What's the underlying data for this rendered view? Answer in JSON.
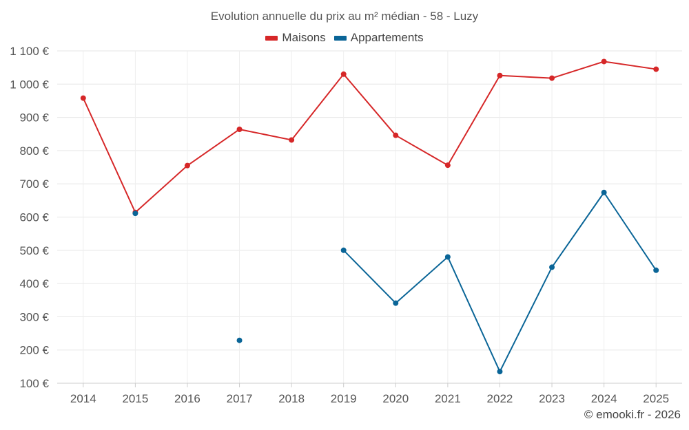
{
  "chart_data": {
    "type": "line",
    "title": "Evolution annuelle du prix au m² médian - 58 - Luzy",
    "categories": [
      "2014",
      "2015",
      "2016",
      "2017",
      "2018",
      "2019",
      "2020",
      "2021",
      "2022",
      "2023",
      "2024",
      "2025"
    ],
    "ylim": [
      100,
      1100
    ],
    "yticks": [
      100,
      200,
      300,
      400,
      500,
      600,
      700,
      800,
      900,
      1000,
      1100
    ],
    "ytick_labels": [
      "100 €",
      "200 €",
      "300 €",
      "400 €",
      "500 €",
      "600 €",
      "700 €",
      "800 €",
      "900 €",
      "1 000 €",
      "1 100 €"
    ],
    "grid": true,
    "legend_position": "top-center",
    "series": [
      {
        "name": "Maisons",
        "color": "#d62728",
        "values": [
          958,
          614,
          755,
          864,
          832,
          1030,
          846,
          756,
          1026,
          1018,
          1068,
          1045
        ]
      },
      {
        "name": "Appartements",
        "color": "#0a6597",
        "values": [
          null,
          611,
          null,
          229,
          null,
          500,
          341,
          480,
          135,
          449,
          674,
          440
        ]
      }
    ]
  },
  "footer": {
    "credit": "© emooki.fr - 2026"
  }
}
